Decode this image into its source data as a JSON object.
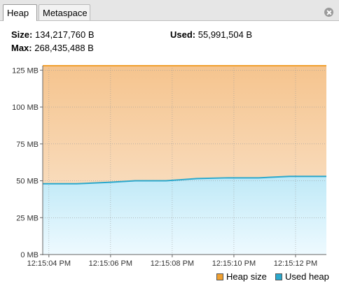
{
  "tabs": [
    {
      "label": "Heap",
      "active": true
    },
    {
      "label": "Metaspace",
      "active": false
    }
  ],
  "stats": {
    "size_label": "Size:",
    "size_value": "134,217,760 B",
    "used_label": "Used:",
    "used_value": "55,991,504 B",
    "max_label": "Max:",
    "max_value": "268,435,488 B"
  },
  "colors": {
    "heap_line": "#f0a030",
    "heap_fill_top": "#f5c48e",
    "heap_fill_bottom": "#fbe9d6",
    "used_line": "#2aa8cc",
    "used_fill_top": "#bfe9f7",
    "used_fill_bottom": "#eefaff",
    "grid": "#9a9a9a"
  },
  "chart_data": {
    "type": "area",
    "y_unit": "MB",
    "ylim": [
      0,
      128
    ],
    "y_ticks": [
      0,
      25,
      50,
      75,
      100,
      125
    ],
    "y_tick_labels": [
      "0 MB",
      "25 MB",
      "50 MB",
      "75 MB",
      "100 MB",
      "125 MB"
    ],
    "x_ticks": [
      4,
      6,
      8,
      10,
      12
    ],
    "x_tick_labels": [
      "12:15:04 PM",
      "12:15:06 PM",
      "12:15:08 PM",
      "12:15:10 PM",
      "12:15:12 PM"
    ],
    "xlim": [
      3.8,
      13.0
    ],
    "series": [
      {
        "name": "Heap size",
        "x": [
          3.8,
          13.0
        ],
        "values": [
          128,
          128
        ]
      },
      {
        "name": "Used heap",
        "x": [
          3.8,
          4.9,
          6.0,
          6.8,
          7.8,
          8.8,
          9.8,
          10.8,
          11.8,
          13.0
        ],
        "values": [
          48,
          48,
          49,
          50,
          50,
          51.5,
          52,
          52,
          53,
          53
        ]
      }
    ],
    "legend_position": "bottom-right",
    "grid": true
  }
}
